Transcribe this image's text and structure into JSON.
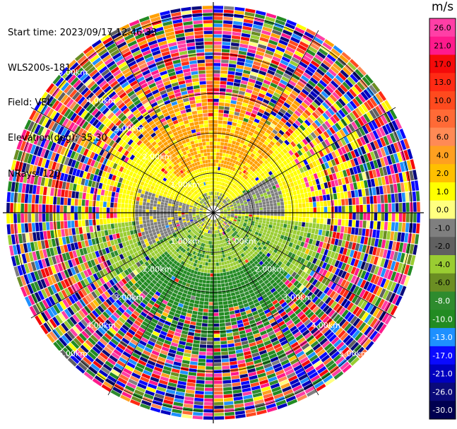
{
  "header": {
    "start_time": "Start time: 2023/09/17 12:46:33",
    "instrument": "WLS200s-181",
    "field": "Field: VEL",
    "elevation": "Elevation(deg): 35.30",
    "nrays": "NRays: 120"
  },
  "colorbar": {
    "unit": "m/s",
    "ticks": [
      "26.0",
      "21.0",
      "17.0",
      "13.0",
      "10.0",
      "8.0",
      "6.0",
      "4.0",
      "2.0",
      "1.0",
      "0.0",
      "-1.0",
      "-2.0",
      "-4.0",
      "-6.0",
      "-8.0",
      "-10.0",
      "-13.0",
      "-17.0",
      "-21.0",
      "-26.0",
      "-30.0"
    ],
    "colors": [
      "#ff3fa6",
      "#ff1a8c",
      "#f50a0a",
      "#ff2a14",
      "#ff4a1e",
      "#ff6a36",
      "#ff8a55",
      "#ffa020",
      "#ffc000",
      "#ffff00",
      "#ffff80",
      "#7f7f7f",
      "#606060",
      "#9acd32",
      "#6b8e23",
      "#2e8b2e",
      "#228b22",
      "#1e90ff",
      "#0a0aff",
      "#0000c0",
      "#0a0a7a",
      "#000050"
    ]
  },
  "chart_data": {
    "type": "heatmap",
    "subtype": "polar PPI scan",
    "field": "VEL",
    "units": "m/s",
    "nrays": 120,
    "range_rings_km": [
      1.0,
      2.0,
      3.0,
      4.0,
      5.0
    ],
    "range_ring_labels": [
      "1.00km",
      "2.00km",
      "3.00km",
      "4.00km",
      "5.00km"
    ],
    "max_range_km": 5.3,
    "spokes_deg": [
      0,
      30,
      60,
      90,
      120,
      150,
      180,
      210,
      240,
      270,
      300,
      330
    ],
    "color_range": [
      -30.0,
      26.0
    ],
    "pattern": {
      "north_sector": "positive velocities (~2 to 6 m/s, yellow/orange) out to ~2.5 km",
      "south_sector": "negative velocities (~-2 to -8 m/s, green) out to ~3 km",
      "west_east_band": "near-zero velocities (grey) along ~250-290 deg and ~70-110 deg",
      "far_range": "noisy random velocities beyond ~3 km"
    }
  }
}
